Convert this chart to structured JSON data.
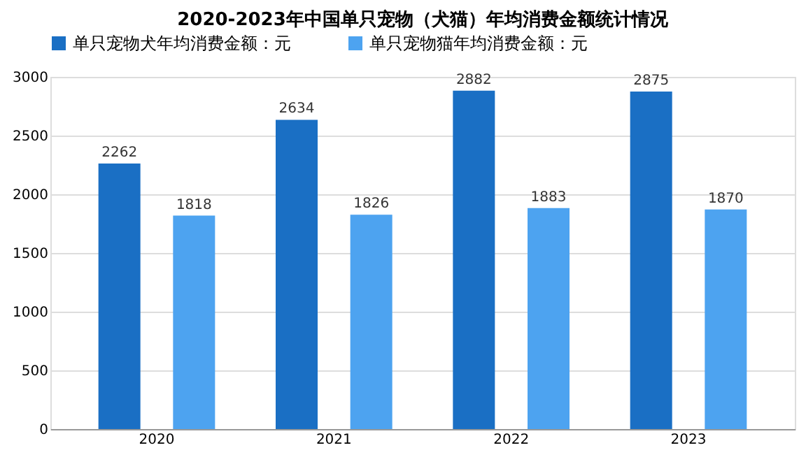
{
  "chart_data": {
    "type": "bar",
    "title": "2020-2023年中国单只宠物（犬猫）年均消费金额统计情况",
    "categories": [
      "2020",
      "2021",
      "2022",
      "2023"
    ],
    "series": [
      {
        "name": "单只宠物犬年均消费金额：元",
        "color": "#1a6fc4",
        "values": [
          2262,
          2634,
          2882,
          2875
        ]
      },
      {
        "name": "单只宠物猫年均消费金额：元",
        "color": "#4da3f0",
        "values": [
          1818,
          1826,
          1883,
          1870
        ]
      }
    ],
    "ylim": [
      0,
      3000
    ],
    "yticks": [
      0,
      500,
      1000,
      1500,
      2000,
      2500,
      3000
    ],
    "grid": "y",
    "legend": "top",
    "data_labels": true
  }
}
